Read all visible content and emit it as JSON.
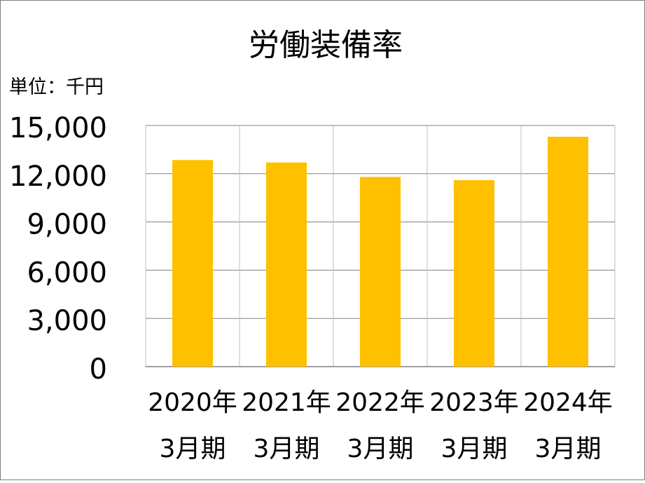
{
  "chart_data": {
    "type": "bar",
    "title": "労働装備率",
    "unit_label": "単位：千円",
    "categories": [
      [
        "2020年",
        "3月期"
      ],
      [
        "2021年",
        "3月期"
      ],
      [
        "2022年",
        "3月期"
      ],
      [
        "2023年",
        "3月期"
      ],
      [
        "2024年",
        "3月期"
      ]
    ],
    "values": [
      12850,
      12700,
      11800,
      11600,
      14300
    ],
    "ylim": [
      0,
      15000
    ],
    "yticks": [
      0,
      3000,
      6000,
      9000,
      12000,
      15000
    ],
    "ytick_labels": [
      "0",
      "3,000",
      "6,000",
      "9,000",
      "12,000",
      "15,000"
    ],
    "grid": true,
    "bar_color": "#FFC000",
    "grid_color": "#808080"
  }
}
